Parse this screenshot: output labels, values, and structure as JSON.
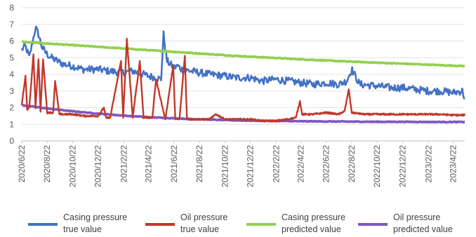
{
  "chart_data": {
    "type": "line",
    "title": "",
    "xlabel": "",
    "ylabel": "",
    "ylim": [
      0,
      8
    ],
    "yticks": [
      0,
      1,
      2,
      3,
      4,
      5,
      6,
      7,
      8
    ],
    "grid": "horizontal",
    "legend_position": "bottom",
    "x_range": [
      "2020-06-22",
      "2023-05-20"
    ],
    "x_tick_labels": [
      "2020/6/22",
      "2020/8/22",
      "2020/10/22",
      "2020/12/22",
      "2021/2/22",
      "2021/4/22",
      "2021/6/22",
      "2021/8/22",
      "2021/10/22",
      "2021/12/22",
      "2022/2/22",
      "2022/4/22",
      "2022/6/22",
      "2022/8/22",
      "2022/10/22",
      "2022/12/22",
      "2023/2/22",
      "2023/4/22"
    ],
    "x_tick_dates": [
      "2020-06-22",
      "2020-08-22",
      "2020-10-22",
      "2020-12-22",
      "2021-02-22",
      "2021-04-22",
      "2021-06-22",
      "2021-08-22",
      "2021-10-22",
      "2021-12-22",
      "2022-02-22",
      "2022-04-22",
      "2022-06-22",
      "2022-08-22",
      "2022-10-22",
      "2022-12-22",
      "2023-02-22",
      "2023-04-22"
    ],
    "series": [
      {
        "name": "Casing pressure true value",
        "legend_lines": [
          "Casing pressure",
          "true value"
        ],
        "color": "#4472C4",
        "x": [
          "2020-06-22",
          "2020-07-01",
          "2020-07-10",
          "2020-07-20",
          "2020-07-25",
          "2020-08-01",
          "2020-08-10",
          "2020-08-22",
          "2020-09-01",
          "2020-09-15",
          "2020-10-01",
          "2020-10-22",
          "2020-11-15",
          "2020-12-22",
          "2021-01-15",
          "2021-02-22",
          "2021-03-15",
          "2021-04-22",
          "2021-05-10",
          "2021-05-22",
          "2021-05-28",
          "2021-06-05",
          "2021-06-22",
          "2021-07-01",
          "2021-07-10",
          "2021-08-01",
          "2021-08-22",
          "2021-09-15",
          "2021-10-22",
          "2021-11-15",
          "2021-12-22",
          "2022-01-20",
          "2022-02-22",
          "2022-03-22",
          "2022-04-22",
          "2022-05-22",
          "2022-06-22",
          "2022-07-22",
          "2022-08-10",
          "2022-08-22",
          "2022-09-10",
          "2022-10-22",
          "2022-11-22",
          "2022-12-22",
          "2023-01-22",
          "2023-02-22",
          "2023-03-22",
          "2023-04-22",
          "2023-05-15",
          "2023-05-20"
        ],
        "y": [
          5.5,
          5.7,
          5.0,
          6.2,
          6.8,
          6.4,
          5.6,
          5.2,
          5.0,
          4.8,
          4.6,
          4.5,
          4.3,
          4.3,
          4.2,
          4.1,
          4.2,
          3.9,
          3.8,
          3.7,
          6.4,
          4.8,
          4.4,
          4.5,
          4.3,
          4.2,
          4.1,
          4.0,
          3.9,
          3.8,
          3.8,
          3.6,
          3.7,
          3.6,
          3.5,
          3.4,
          3.5,
          3.4,
          3.6,
          4.3,
          3.4,
          3.3,
          3.2,
          3.2,
          3.1,
          3.0,
          3.0,
          2.9,
          3.0,
          2.5
        ]
      },
      {
        "name": "Oil pressure true value",
        "legend_lines": [
          "Oil pressure",
          "true value"
        ],
        "color": "#C0392B",
        "x": [
          "2020-06-22",
          "2020-07-01",
          "2020-07-05",
          "2020-07-10",
          "2020-07-20",
          "2020-07-25",
          "2020-08-01",
          "2020-08-06",
          "2020-08-12",
          "2020-08-22",
          "2020-09-05",
          "2020-09-10",
          "2020-09-20",
          "2020-10-05",
          "2020-10-22",
          "2020-11-20",
          "2020-12-22",
          "2021-01-05",
          "2021-01-10",
          "2021-01-20",
          "2021-02-15",
          "2021-02-20",
          "2021-03-01",
          "2021-03-15",
          "2021-04-01",
          "2021-04-10",
          "2021-05-01",
          "2021-05-10",
          "2021-06-01",
          "2021-06-20",
          "2021-06-25",
          "2021-07-05",
          "2021-07-18",
          "2021-07-23",
          "2021-08-05",
          "2021-08-22",
          "2021-09-15",
          "2021-10-01",
          "2021-10-22",
          "2021-11-22",
          "2021-12-22",
          "2022-01-22",
          "2022-02-22",
          "2022-03-22",
          "2022-04-10",
          "2022-04-20",
          "2022-04-25",
          "2022-05-22",
          "2022-06-22",
          "2022-07-22",
          "2022-08-05",
          "2022-08-15",
          "2022-08-22",
          "2022-09-22",
          "2022-10-22",
          "2022-11-22",
          "2022-12-22",
          "2023-01-22",
          "2023-02-22",
          "2023-03-22",
          "2023-04-22",
          "2023-05-20"
        ],
        "y": [
          2.2,
          3.9,
          1.9,
          2.0,
          5.2,
          2.0,
          4.9,
          1.8,
          4.9,
          1.7,
          1.7,
          3.6,
          1.6,
          1.6,
          1.6,
          1.5,
          1.5,
          2.0,
          1.4,
          1.4,
          4.8,
          1.4,
          6.1,
          1.4,
          4.8,
          1.4,
          1.4,
          3.7,
          1.3,
          4.5,
          1.3,
          1.3,
          5.1,
          1.3,
          1.3,
          1.3,
          1.3,
          1.6,
          1.3,
          1.3,
          1.3,
          1.2,
          1.2,
          1.3,
          1.4,
          2.4,
          1.6,
          1.6,
          1.7,
          1.6,
          1.8,
          3.1,
          1.7,
          1.6,
          1.6,
          1.6,
          1.6,
          1.6,
          1.6,
          1.6,
          1.55,
          1.55
        ]
      },
      {
        "name": "Casing pressure predicted value",
        "legend_lines": [
          "Casing pressure",
          "predicted value"
        ],
        "color": "#92D050",
        "x": [
          "2020-06-22",
          "2020-08-22",
          "2020-10-22",
          "2020-12-22",
          "2021-02-22",
          "2021-04-22",
          "2021-06-22",
          "2021-08-22",
          "2021-10-22",
          "2021-12-22",
          "2022-02-22",
          "2022-04-22",
          "2022-06-22",
          "2022-08-22",
          "2022-10-22",
          "2022-12-22",
          "2023-02-22",
          "2023-04-22",
          "2023-05-20"
        ],
        "y": [
          5.95,
          5.85,
          5.75,
          5.65,
          5.55,
          5.45,
          5.35,
          5.25,
          5.15,
          5.06,
          4.98,
          4.9,
          4.83,
          4.76,
          4.7,
          4.64,
          4.58,
          4.52,
          4.5
        ]
      },
      {
        "name": "Oil pressure predicted value",
        "legend_lines": [
          "Oil pressure",
          "predicted value"
        ],
        "color": "#7E57C2",
        "x": [
          "2020-06-22",
          "2020-08-22",
          "2020-10-22",
          "2020-12-22",
          "2021-02-22",
          "2021-04-22",
          "2021-06-22",
          "2021-08-22",
          "2021-10-22",
          "2021-12-22",
          "2022-02-22",
          "2022-04-22",
          "2022-06-22",
          "2022-08-22",
          "2022-10-22",
          "2022-12-22",
          "2023-02-22",
          "2023-04-22",
          "2023-05-20"
        ],
        "y": [
          2.15,
          1.95,
          1.78,
          1.64,
          1.52,
          1.43,
          1.36,
          1.3,
          1.25,
          1.22,
          1.2,
          1.18,
          1.17,
          1.16,
          1.15,
          1.15,
          1.14,
          1.14,
          1.14
        ]
      }
    ]
  }
}
